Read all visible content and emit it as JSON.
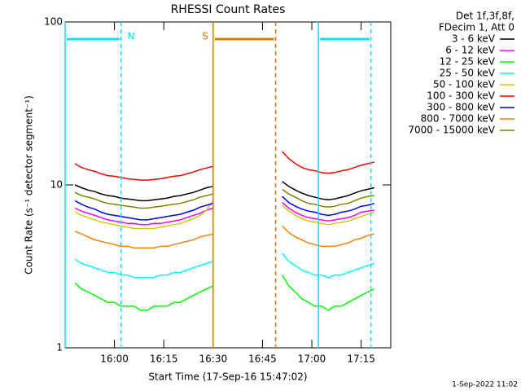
{
  "chart_data": {
    "type": "line",
    "title": "RHESSI Count Rates",
    "xlabel": "Start Time (17-Sep-16 15:47:02)",
    "ylabel": "Count Rate (s⁻¹ detector segment⁻¹)",
    "legend_header": [
      "Det 1f,3f,8f,",
      "FDecim 1, Att 0"
    ],
    "footer": "1-Sep-2022 11:02",
    "log_y": true,
    "legend": "outside-right",
    "xlim": [
      "15:45",
      "17:24"
    ],
    "xticks": [
      "16:00",
      "16:15",
      "16:30",
      "16:45",
      "17:00",
      "17:15"
    ],
    "ylim": [
      1,
      100
    ],
    "yticks": [
      1,
      10,
      100
    ],
    "intervals": [
      {
        "label": "N",
        "color": "#00e5ff",
        "start": "15:45",
        "end": "16:02"
      },
      {
        "label": "S",
        "color": "#e07800",
        "start": "16:30",
        "end": "16:49"
      },
      {
        "color": "#00e5ff",
        "start": "17:02",
        "end": "17:18"
      }
    ],
    "x": [
      "15:48",
      "15:50",
      "15:52",
      "15:54",
      "15:56",
      "15:58",
      "16:00",
      "16:02",
      "16:04",
      "16:06",
      "16:08",
      "16:10",
      "16:12",
      "16:14",
      "16:16",
      "16:18",
      "16:20",
      "16:22",
      "16:24",
      "16:26",
      "16:28",
      "16:30",
      "16:40",
      "16:51",
      "16:53",
      "16:55",
      "16:57",
      "16:59",
      "17:01",
      "17:03",
      "17:05",
      "17:07",
      "17:09",
      "17:11",
      "17:13",
      "17:15",
      "17:17",
      "17:19"
    ],
    "series": [
      {
        "name": "3 - 6 keV",
        "color": "#000000",
        "values": [
          10.0,
          9.6,
          9.3,
          9.1,
          8.8,
          8.6,
          8.5,
          8.3,
          8.2,
          8.1,
          8.0,
          8.0,
          8.1,
          8.2,
          8.3,
          8.5,
          8.6,
          8.8,
          9.0,
          9.3,
          9.6,
          9.8,
          null,
          10.5,
          9.8,
          9.3,
          8.9,
          8.6,
          8.4,
          8.2,
          8.1,
          8.2,
          8.4,
          8.6,
          8.9,
          9.2,
          9.4,
          9.6
        ]
      },
      {
        "name": "6 - 12 keV",
        "color": "#ff00ff",
        "values": [
          7.2,
          6.9,
          6.7,
          6.5,
          6.3,
          6.1,
          6.0,
          5.9,
          5.8,
          5.8,
          5.7,
          5.7,
          5.8,
          5.8,
          5.9,
          6.0,
          6.1,
          6.3,
          6.5,
          6.7,
          7.0,
          7.2,
          null,
          7.8,
          7.2,
          6.8,
          6.5,
          6.3,
          6.2,
          6.1,
          6.0,
          6.1,
          6.2,
          6.3,
          6.5,
          6.8,
          6.9,
          7.0
        ]
      },
      {
        "name": "12 - 25 keV",
        "color": "#00ff00",
        "values": [
          2.5,
          2.3,
          2.2,
          2.1,
          2.0,
          1.9,
          1.9,
          1.8,
          1.8,
          1.8,
          1.7,
          1.7,
          1.8,
          1.8,
          1.8,
          1.9,
          1.9,
          2.0,
          2.1,
          2.2,
          2.3,
          2.4,
          null,
          2.8,
          2.4,
          2.2,
          2.0,
          1.9,
          1.8,
          1.8,
          1.7,
          1.8,
          1.8,
          1.9,
          2.0,
          2.1,
          2.2,
          2.3
        ]
      },
      {
        "name": "25 - 50 keV",
        "color": "#00ffff",
        "values": [
          3.5,
          3.3,
          3.2,
          3.1,
          3.0,
          2.9,
          2.9,
          2.8,
          2.8,
          2.7,
          2.7,
          2.7,
          2.7,
          2.8,
          2.8,
          2.9,
          2.9,
          3.0,
          3.1,
          3.2,
          3.3,
          3.4,
          null,
          3.8,
          3.4,
          3.2,
          3.0,
          2.9,
          2.8,
          2.8,
          2.7,
          2.8,
          2.8,
          2.9,
          3.0,
          3.1,
          3.2,
          3.3
        ]
      },
      {
        "name": "50 - 100 keV",
        "color": "#d4c800",
        "values": [
          6.8,
          6.5,
          6.3,
          6.1,
          5.9,
          5.8,
          5.7,
          5.6,
          5.5,
          5.4,
          5.4,
          5.4,
          5.4,
          5.5,
          5.6,
          5.7,
          5.8,
          6.0,
          6.2,
          6.5,
          7.0,
          8.0,
          null,
          7.5,
          6.9,
          6.5,
          6.2,
          6.0,
          5.9,
          5.8,
          5.7,
          5.8,
          5.9,
          6.0,
          6.2,
          6.4,
          6.6,
          6.8
        ]
      },
      {
        "name": "100 - 300 keV",
        "color": "#ff0000",
        "values": [
          13.5,
          12.8,
          12.4,
          12.1,
          11.7,
          11.4,
          11.3,
          11.1,
          10.9,
          10.8,
          10.7,
          10.7,
          10.8,
          10.9,
          11.1,
          11.3,
          11.4,
          11.7,
          12.0,
          12.4,
          12.7,
          13.0,
          null,
          16.0,
          14.5,
          13.5,
          12.8,
          12.4,
          12.2,
          11.9,
          11.8,
          11.9,
          12.2,
          12.4,
          12.8,
          13.2,
          13.5,
          13.8
        ]
      },
      {
        "name": "300 - 800 keV",
        "color": "#0000ff",
        "values": [
          8.0,
          7.6,
          7.3,
          7.1,
          6.8,
          6.6,
          6.5,
          6.4,
          6.3,
          6.2,
          6.1,
          6.1,
          6.2,
          6.3,
          6.4,
          6.5,
          6.6,
          6.8,
          7.0,
          7.3,
          7.5,
          7.7,
          null,
          8.5,
          7.8,
          7.4,
          7.1,
          6.9,
          6.8,
          6.6,
          6.5,
          6.6,
          6.8,
          6.9,
          7.1,
          7.4,
          7.5,
          7.7
        ]
      },
      {
        "name": "800 - 7000 keV",
        "color": "#ff8000",
        "values": [
          5.2,
          5.0,
          4.8,
          4.6,
          4.5,
          4.4,
          4.3,
          4.2,
          4.2,
          4.1,
          4.1,
          4.1,
          4.1,
          4.2,
          4.2,
          4.3,
          4.4,
          4.5,
          4.6,
          4.8,
          4.9,
          5.0,
          null,
          5.6,
          5.1,
          4.8,
          4.6,
          4.4,
          4.3,
          4.2,
          4.2,
          4.2,
          4.3,
          4.4,
          4.6,
          4.7,
          4.9,
          5.0
        ]
      },
      {
        "name": "7000 - 15000 keV",
        "color": "#808000",
        "values": [
          9.0,
          8.6,
          8.4,
          8.2,
          7.9,
          7.7,
          7.6,
          7.5,
          7.4,
          7.3,
          7.2,
          7.2,
          7.3,
          7.4,
          7.5,
          7.6,
          7.7,
          7.9,
          8.1,
          8.4,
          8.6,
          8.8,
          null,
          9.4,
          8.8,
          8.4,
          8.0,
          7.7,
          7.6,
          7.4,
          7.3,
          7.4,
          7.6,
          7.7,
          8.0,
          8.3,
          8.5,
          8.6
        ]
      }
    ]
  }
}
